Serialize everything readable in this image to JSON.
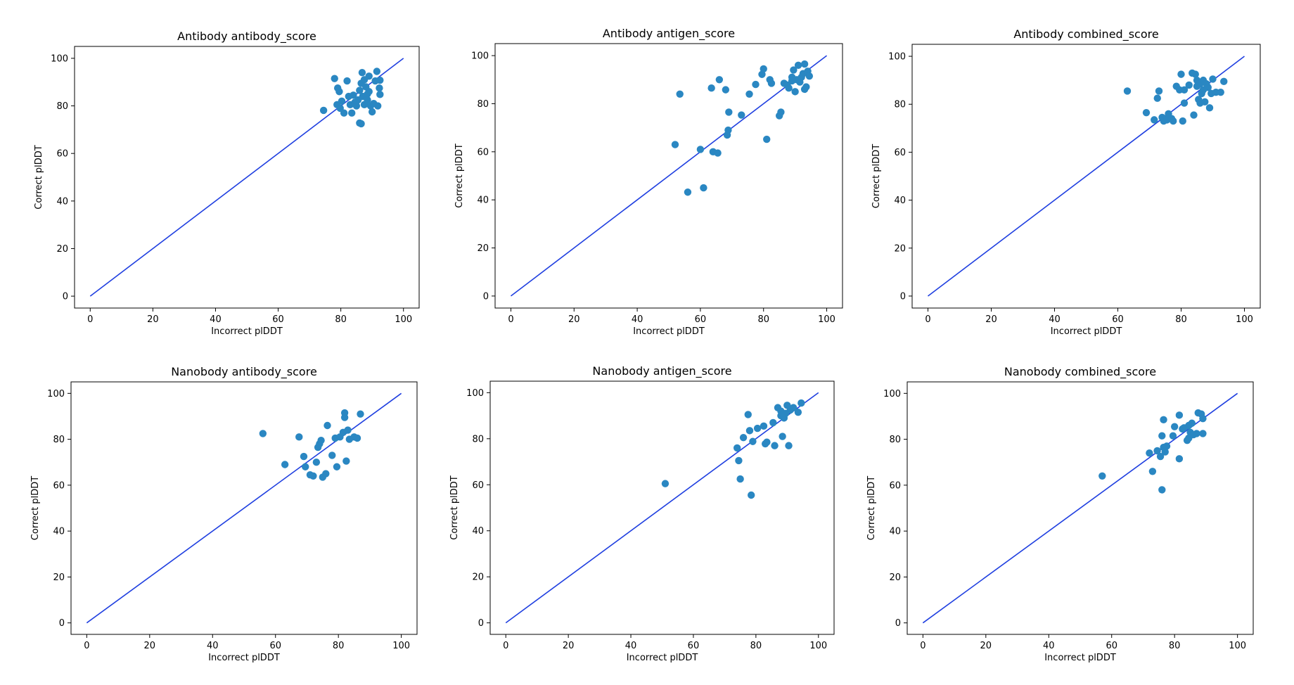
{
  "chart_data": [
    {
      "type": "scatter",
      "title": "Antibody antibody_score",
      "xlabel": "Incorrect plDDT",
      "ylabel": "Correct plDDT",
      "xlim": [
        -5,
        105
      ],
      "ylim": [
        -5,
        105
      ],
      "xticks": [
        0,
        20,
        40,
        60,
        80,
        100
      ],
      "yticks": [
        0,
        20,
        40,
        60,
        80,
        100
      ],
      "reference_line": {
        "x": [
          0,
          100
        ],
        "y": [
          0,
          100
        ],
        "color": "#1f3fe0"
      },
      "marker_color": "#2a87c2",
      "points": [
        [
          74.5,
          78.1
        ],
        [
          78,
          91.5
        ],
        [
          79,
          87.5
        ],
        [
          79.5,
          86
        ],
        [
          78.8,
          80.5
        ],
        [
          79.8,
          79
        ],
        [
          80.3,
          82
        ],
        [
          81,
          77
        ],
        [
          82,
          90.5
        ],
        [
          82.5,
          84
        ],
        [
          83,
          80.5
        ],
        [
          83.5,
          77
        ],
        [
          84,
          84.5
        ],
        [
          84.5,
          81.5
        ],
        [
          85,
          80
        ],
        [
          85.5,
          82.5
        ],
        [
          86,
          86.5
        ],
        [
          86,
          72.8
        ],
        [
          86.5,
          72.5
        ],
        [
          86.5,
          89.5
        ],
        [
          86.8,
          94
        ],
        [
          87,
          84
        ],
        [
          87.5,
          80.5
        ],
        [
          87.5,
          91
        ],
        [
          88,
          88
        ],
        [
          88.5,
          85
        ],
        [
          89,
          92.5
        ],
        [
          89,
          86
        ],
        [
          89.5,
          80
        ],
        [
          90,
          77.5
        ],
        [
          90.5,
          81
        ],
        [
          91,
          90.5
        ],
        [
          91.5,
          94.5
        ],
        [
          91.8,
          80
        ],
        [
          92.3,
          87.5
        ],
        [
          92.5,
          84.8
        ],
        [
          92.5,
          90.8
        ],
        [
          88.5,
          82.5
        ]
      ]
    },
    {
      "type": "scatter",
      "title": "Antibody antigen_score",
      "xlabel": "Incorrect plDDT",
      "ylabel": "Correct plDDT",
      "xlim": [
        -5,
        105
      ],
      "ylim": [
        -5,
        105
      ],
      "xticks": [
        0,
        20,
        40,
        60,
        80,
        100
      ],
      "yticks": [
        0,
        20,
        40,
        60,
        80,
        100
      ],
      "reference_line": {
        "x": [
          0,
          100
        ],
        "y": [
          0,
          100
        ],
        "color": "#1f3fe0"
      },
      "marker_color": "#2a87c2",
      "points": [
        [
          52,
          63
        ],
        [
          53.5,
          84
        ],
        [
          56,
          43.2
        ],
        [
          60,
          61
        ],
        [
          61,
          45
        ],
        [
          63.5,
          86.5
        ],
        [
          64,
          60
        ],
        [
          65.5,
          59.5
        ],
        [
          66,
          90
        ],
        [
          68,
          85.8
        ],
        [
          68.5,
          67
        ],
        [
          68.8,
          69
        ],
        [
          69,
          76.5
        ],
        [
          73,
          75.3
        ],
        [
          75.5,
          84
        ],
        [
          77.5,
          88
        ],
        [
          79.5,
          92.2
        ],
        [
          80,
          94.5
        ],
        [
          81,
          65.2
        ],
        [
          82,
          90
        ],
        [
          82.5,
          88.5
        ],
        [
          85,
          75
        ],
        [
          85.5,
          76.5
        ],
        [
          86.5,
          88.5
        ],
        [
          87.5,
          87.8
        ],
        [
          88,
          86.5
        ],
        [
          89,
          91
        ],
        [
          89.5,
          94
        ],
        [
          90,
          85
        ],
        [
          90.5,
          90
        ],
        [
          91,
          96
        ],
        [
          91.5,
          89
        ],
        [
          92,
          91
        ],
        [
          92.5,
          92.5
        ],
        [
          93,
          96.5
        ],
        [
          93,
          86
        ],
        [
          93.5,
          87
        ],
        [
          94,
          93.5
        ],
        [
          94.5,
          91.5
        ],
        [
          89,
          89.5
        ]
      ]
    },
    {
      "type": "scatter",
      "title": "Antibody combined_score",
      "xlabel": "Incorrect plDDT",
      "ylabel": "Correct plDDT",
      "xlim": [
        -5,
        105
      ],
      "ylim": [
        -5,
        105
      ],
      "xticks": [
        0,
        20,
        40,
        60,
        80,
        100
      ],
      "yticks": [
        0,
        20,
        40,
        60,
        80,
        100
      ],
      "reference_line": {
        "x": [
          0,
          100
        ],
        "y": [
          0,
          100
        ],
        "color": "#1f3fe0"
      },
      "marker_color": "#2a87c2",
      "points": [
        [
          63,
          85.5
        ],
        [
          69,
          76.5
        ],
        [
          71.5,
          73.5
        ],
        [
          72.5,
          82.5
        ],
        [
          73,
          85.5
        ],
        [
          74,
          74.5
        ],
        [
          74.5,
          73
        ],
        [
          75.5,
          73.5
        ],
        [
          76,
          76
        ],
        [
          77,
          74
        ],
        [
          77.5,
          73
        ],
        [
          78.5,
          87.5
        ],
        [
          79.5,
          86
        ],
        [
          80,
          92.5
        ],
        [
          80.5,
          73
        ],
        [
          81,
          86
        ],
        [
          81,
          80.5
        ],
        [
          82.5,
          88
        ],
        [
          83.5,
          93
        ],
        [
          84,
          75.5
        ],
        [
          84.5,
          92.5
        ],
        [
          85,
          90
        ],
        [
          85.5,
          82
        ],
        [
          86,
          80.5
        ],
        [
          86,
          88.5
        ],
        [
          86.5,
          84.5
        ],
        [
          87,
          90
        ],
        [
          87,
          86
        ],
        [
          87.5,
          81
        ],
        [
          88,
          88.5
        ],
        [
          88.5,
          87
        ],
        [
          89,
          78.5
        ],
        [
          89.5,
          84.5
        ],
        [
          90,
          90.5
        ],
        [
          91,
          85
        ],
        [
          92.5,
          85
        ],
        [
          93.5,
          89.5
        ],
        [
          85,
          87.5
        ]
      ]
    },
    {
      "type": "scatter",
      "title": "Nanobody antibody_score",
      "xlabel": "Incorrect plDDT",
      "ylabel": "Correct plDDT",
      "xlim": [
        -5,
        105
      ],
      "ylim": [
        -5,
        105
      ],
      "xticks": [
        0,
        20,
        40,
        60,
        80,
        100
      ],
      "yticks": [
        0,
        20,
        40,
        60,
        80,
        100
      ],
      "reference_line": {
        "x": [
          0,
          100
        ],
        "y": [
          0,
          100
        ],
        "color": "#1f3fe0"
      },
      "marker_color": "#2a87c2",
      "points": [
        [
          56,
          82.5
        ],
        [
          63,
          69
        ],
        [
          67.5,
          81
        ],
        [
          69,
          72.5
        ],
        [
          69.5,
          68
        ],
        [
          71,
          64.5
        ],
        [
          72,
          64
        ],
        [
          73,
          70
        ],
        [
          73.5,
          76.5
        ],
        [
          74,
          78
        ],
        [
          74.5,
          79.5
        ],
        [
          75,
          63.5
        ],
        [
          76,
          65
        ],
        [
          76.5,
          86
        ],
        [
          78,
          73
        ],
        [
          79,
          80.5
        ],
        [
          79.5,
          68
        ],
        [
          80.5,
          81
        ],
        [
          81.5,
          83
        ],
        [
          82,
          89.5
        ],
        [
          82,
          91.5
        ],
        [
          82.5,
          70.5
        ],
        [
          83,
          84
        ],
        [
          83.5,
          80
        ],
        [
          85,
          81
        ],
        [
          86,
          80.5
        ],
        [
          87,
          91
        ]
      ]
    },
    {
      "type": "scatter",
      "title": "Nanobody antigen_score",
      "xlabel": "Incorrect plDDT",
      "ylabel": "Correct plDDT",
      "xlim": [
        -5,
        105
      ],
      "ylim": [
        -5,
        105
      ],
      "xticks": [
        0,
        20,
        40,
        60,
        80,
        100
      ],
      "yticks": [
        0,
        20,
        40,
        60,
        80,
        100
      ],
      "reference_line": {
        "x": [
          0,
          100
        ],
        "y": [
          0,
          100
        ],
        "color": "#1f3fe0"
      },
      "marker_color": "#2a87c2",
      "points": [
        [
          51,
          60.5
        ],
        [
          74,
          76
        ],
        [
          74.5,
          70.5
        ],
        [
          75,
          62.5
        ],
        [
          76,
          80.5
        ],
        [
          77.5,
          90.5
        ],
        [
          78,
          83.5
        ],
        [
          78.5,
          55.5
        ],
        [
          79,
          78.8
        ],
        [
          80.5,
          84.5
        ],
        [
          82.5,
          85.5
        ],
        [
          83,
          77.8
        ],
        [
          83.5,
          78.5
        ],
        [
          85.5,
          87
        ],
        [
          86,
          77
        ],
        [
          87,
          93.5
        ],
        [
          88,
          92
        ],
        [
          88,
          90
        ],
        [
          88.5,
          81
        ],
        [
          89,
          89
        ],
        [
          90,
          94.5
        ],
        [
          90.5,
          77
        ],
        [
          91,
          92.5
        ],
        [
          92,
          93.5
        ],
        [
          93.5,
          91.5
        ],
        [
          94.5,
          95.5
        ],
        [
          89.5,
          91
        ]
      ]
    },
    {
      "type": "scatter",
      "title": "Nanobody combined_score",
      "xlabel": "Incorrect plDDT",
      "ylabel": "Correct plDDT",
      "xlim": [
        -5,
        105
      ],
      "ylim": [
        -5,
        105
      ],
      "xticks": [
        0,
        20,
        40,
        60,
        80,
        100
      ],
      "yticks": [
        0,
        20,
        40,
        60,
        80,
        100
      ],
      "reference_line": {
        "x": [
          0,
          100
        ],
        "y": [
          0,
          100
        ],
        "color": "#1f3fe0"
      },
      "marker_color": "#2a87c2",
      "points": [
        [
          57,
          64
        ],
        [
          72,
          74
        ],
        [
          73,
          66
        ],
        [
          74.5,
          75
        ],
        [
          75.5,
          72.5
        ],
        [
          76,
          81.5
        ],
        [
          76,
          58
        ],
        [
          76.5,
          88.5
        ],
        [
          76.5,
          76.5
        ],
        [
          77,
          74.5
        ],
        [
          77.5,
          77
        ],
        [
          79.5,
          81.5
        ],
        [
          80,
          85.5
        ],
        [
          81.5,
          90.5
        ],
        [
          81.5,
          71.5
        ],
        [
          82.5,
          84.5
        ],
        [
          83,
          85
        ],
        [
          84,
          79.5
        ],
        [
          84.5,
          86
        ],
        [
          85,
          83
        ],
        [
          85.5,
          87
        ],
        [
          86,
          82
        ],
        [
          87,
          82.5
        ],
        [
          87.5,
          91.5
        ],
        [
          88.5,
          91
        ],
        [
          89,
          89
        ],
        [
          89,
          82.5
        ],
        [
          84.5,
          80.5
        ]
      ]
    }
  ]
}
